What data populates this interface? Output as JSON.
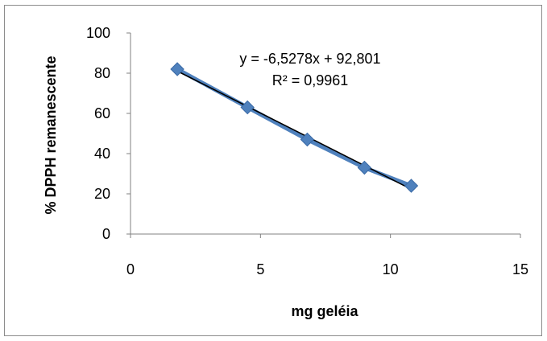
{
  "chart_data": {
    "type": "scatter",
    "xlabel": "mg geléia",
    "ylabel": "% DPPH remanescente",
    "xlim": [
      0,
      15
    ],
    "ylim": [
      0,
      100
    ],
    "xticks": [
      "0",
      "5",
      "10",
      "15"
    ],
    "yticks": [
      "0",
      "20",
      "40",
      "60",
      "80",
      "100"
    ],
    "series": [
      {
        "x": [
          1.8,
          4.5,
          6.8,
          9.0,
          10.8
        ],
        "y": [
          82,
          63,
          47,
          33,
          24
        ]
      }
    ],
    "trendline": {
      "slope": -6.5278,
      "intercept": 92.801,
      "x_range": [
        1.8,
        10.8
      ]
    },
    "annotations": {
      "equation": "y = -6,5278x + 92,801",
      "r2": "R² = 0,9961"
    },
    "grid": false,
    "legend": "none",
    "colors": {
      "series": "#4f81bd",
      "trendline": "#000000",
      "axis": "#808080"
    }
  }
}
